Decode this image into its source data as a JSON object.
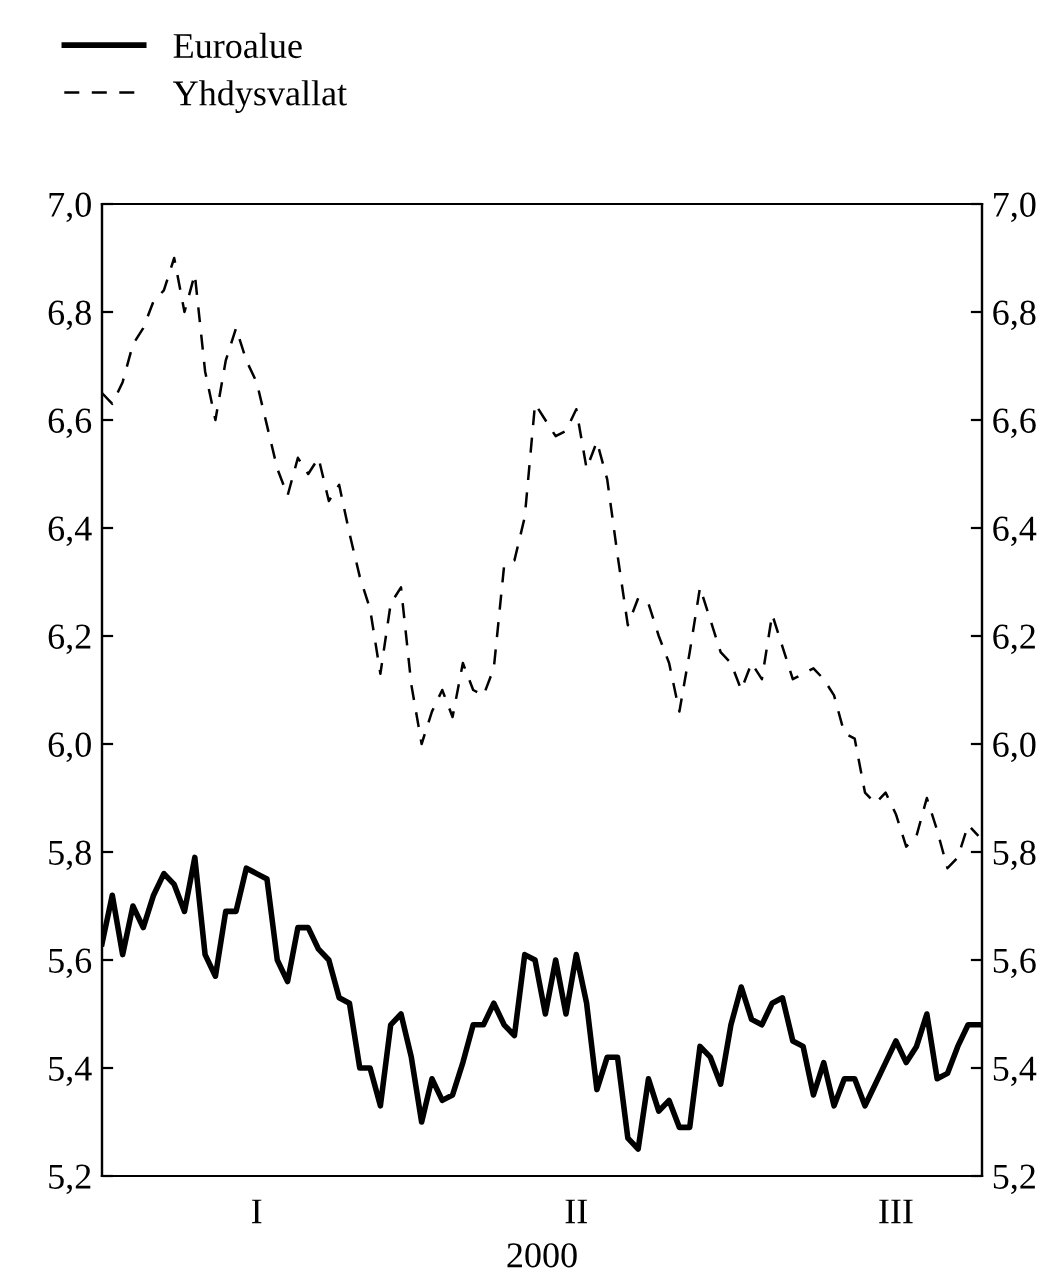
{
  "chart_data": {
    "type": "line",
    "xlabel": "2000",
    "categories": [
      null,
      null,
      null,
      null,
      null,
      null,
      null,
      null,
      null,
      null,
      null,
      null,
      null,
      null,
      null,
      "I",
      null,
      null,
      null,
      null,
      null,
      null,
      null,
      null,
      null,
      null,
      null,
      null,
      null,
      null,
      null,
      null,
      null,
      null,
      null,
      null,
      null,
      null,
      null,
      null,
      null,
      null,
      null,
      null,
      null,
      null,
      "II",
      null,
      null,
      null,
      null,
      null,
      null,
      null,
      null,
      null,
      null,
      null,
      null,
      null,
      null,
      null,
      null,
      null,
      null,
      null,
      null,
      null,
      null,
      null,
      null,
      null,
      null,
      null,
      null,
      null,
      null,
      "III",
      null,
      null,
      null,
      null,
      null,
      null,
      null,
      null
    ],
    "ylim": [
      5.2,
      7.0
    ],
    "yticks": [
      {
        "value": 5.2,
        "label": "5,2"
      },
      {
        "value": 5.4,
        "label": "5,4"
      },
      {
        "value": 5.6,
        "label": "5,6"
      },
      {
        "value": 5.8,
        "label": "5,8"
      },
      {
        "value": 6.0,
        "label": "6,0"
      },
      {
        "value": 6.2,
        "label": "6,2"
      },
      {
        "value": 6.4,
        "label": "6,4"
      },
      {
        "value": 6.6,
        "label": "6,6"
      },
      {
        "value": 6.8,
        "label": "6,8"
      },
      {
        "value": 7.0,
        "label": "7,0"
      }
    ],
    "y2lim": [
      5.2,
      7.0
    ],
    "y2ticks": [
      {
        "value": 5.2,
        "label": "5,2"
      },
      {
        "value": 5.4,
        "label": "5,4"
      },
      {
        "value": 5.6,
        "label": "5,6"
      },
      {
        "value": 5.8,
        "label": "5,8"
      },
      {
        "value": 6.0,
        "label": "6,0"
      },
      {
        "value": 6.2,
        "label": "6,2"
      },
      {
        "value": 6.4,
        "label": "6,4"
      },
      {
        "value": 6.6,
        "label": "6,6"
      },
      {
        "value": 6.8,
        "label": "6,8"
      },
      {
        "value": 7.0,
        "label": "7,0"
      }
    ],
    "grid": false,
    "legend": "top left",
    "series": [
      {
        "name": "Euroalue",
        "color": "#000000",
        "line_style": "solid",
        "values": [
          5.63,
          5.72,
          5.61,
          5.7,
          5.66,
          5.72,
          5.76,
          5.74,
          5.69,
          5.79,
          5.61,
          5.57,
          5.69,
          5.69,
          5.77,
          5.76,
          5.75,
          5.6,
          5.56,
          5.66,
          5.66,
          5.62,
          5.6,
          5.53,
          5.52,
          5.4,
          5.4,
          5.33,
          5.48,
          5.5,
          5.42,
          5.3,
          5.38,
          5.34,
          5.35,
          5.41,
          5.48,
          5.48,
          5.52,
          5.48,
          5.46,
          5.61,
          5.6,
          5.5,
          5.6,
          5.5,
          5.61,
          5.52,
          5.36,
          5.42,
          5.42,
          5.27,
          5.25,
          5.38,
          5.32,
          5.34,
          5.29,
          5.29,
          5.44,
          5.42,
          5.37,
          5.48,
          5.55,
          5.49,
          5.48,
          5.52,
          5.53,
          5.45,
          5.44,
          5.35,
          5.41,
          5.33,
          5.38,
          5.38,
          5.33,
          5.37,
          5.41,
          5.45,
          5.41,
          5.44,
          5.5,
          5.38,
          5.39,
          5.44,
          5.48,
          5.48
        ]
      },
      {
        "name": "Yhdysvallat",
        "color": "#000000",
        "line_style": "dashed",
        "values": [
          6.65,
          6.63,
          6.67,
          6.74,
          6.77,
          6.82,
          6.84,
          6.9,
          6.8,
          6.87,
          6.69,
          6.6,
          6.71,
          6.77,
          6.71,
          6.67,
          6.59,
          6.51,
          6.46,
          6.53,
          6.5,
          6.53,
          6.45,
          6.48,
          6.39,
          6.31,
          6.25,
          6.13,
          6.26,
          6.29,
          6.11,
          6.0,
          6.06,
          6.1,
          6.05,
          6.15,
          6.1,
          6.09,
          6.14,
          6.33,
          6.34,
          6.42,
          6.63,
          6.6,
          6.57,
          6.58,
          6.62,
          6.51,
          6.56,
          6.49,
          6.35,
          6.22,
          6.27,
          6.26,
          6.2,
          6.15,
          6.06,
          6.17,
          6.29,
          6.23,
          6.17,
          6.15,
          6.1,
          6.15,
          6.12,
          6.24,
          6.18,
          6.12,
          6.13,
          6.14,
          6.12,
          6.09,
          6.02,
          6.01,
          5.91,
          5.89,
          5.91,
          5.87,
          5.81,
          5.83,
          5.9,
          5.84,
          5.77,
          5.79,
          5.85,
          5.83
        ]
      }
    ]
  }
}
